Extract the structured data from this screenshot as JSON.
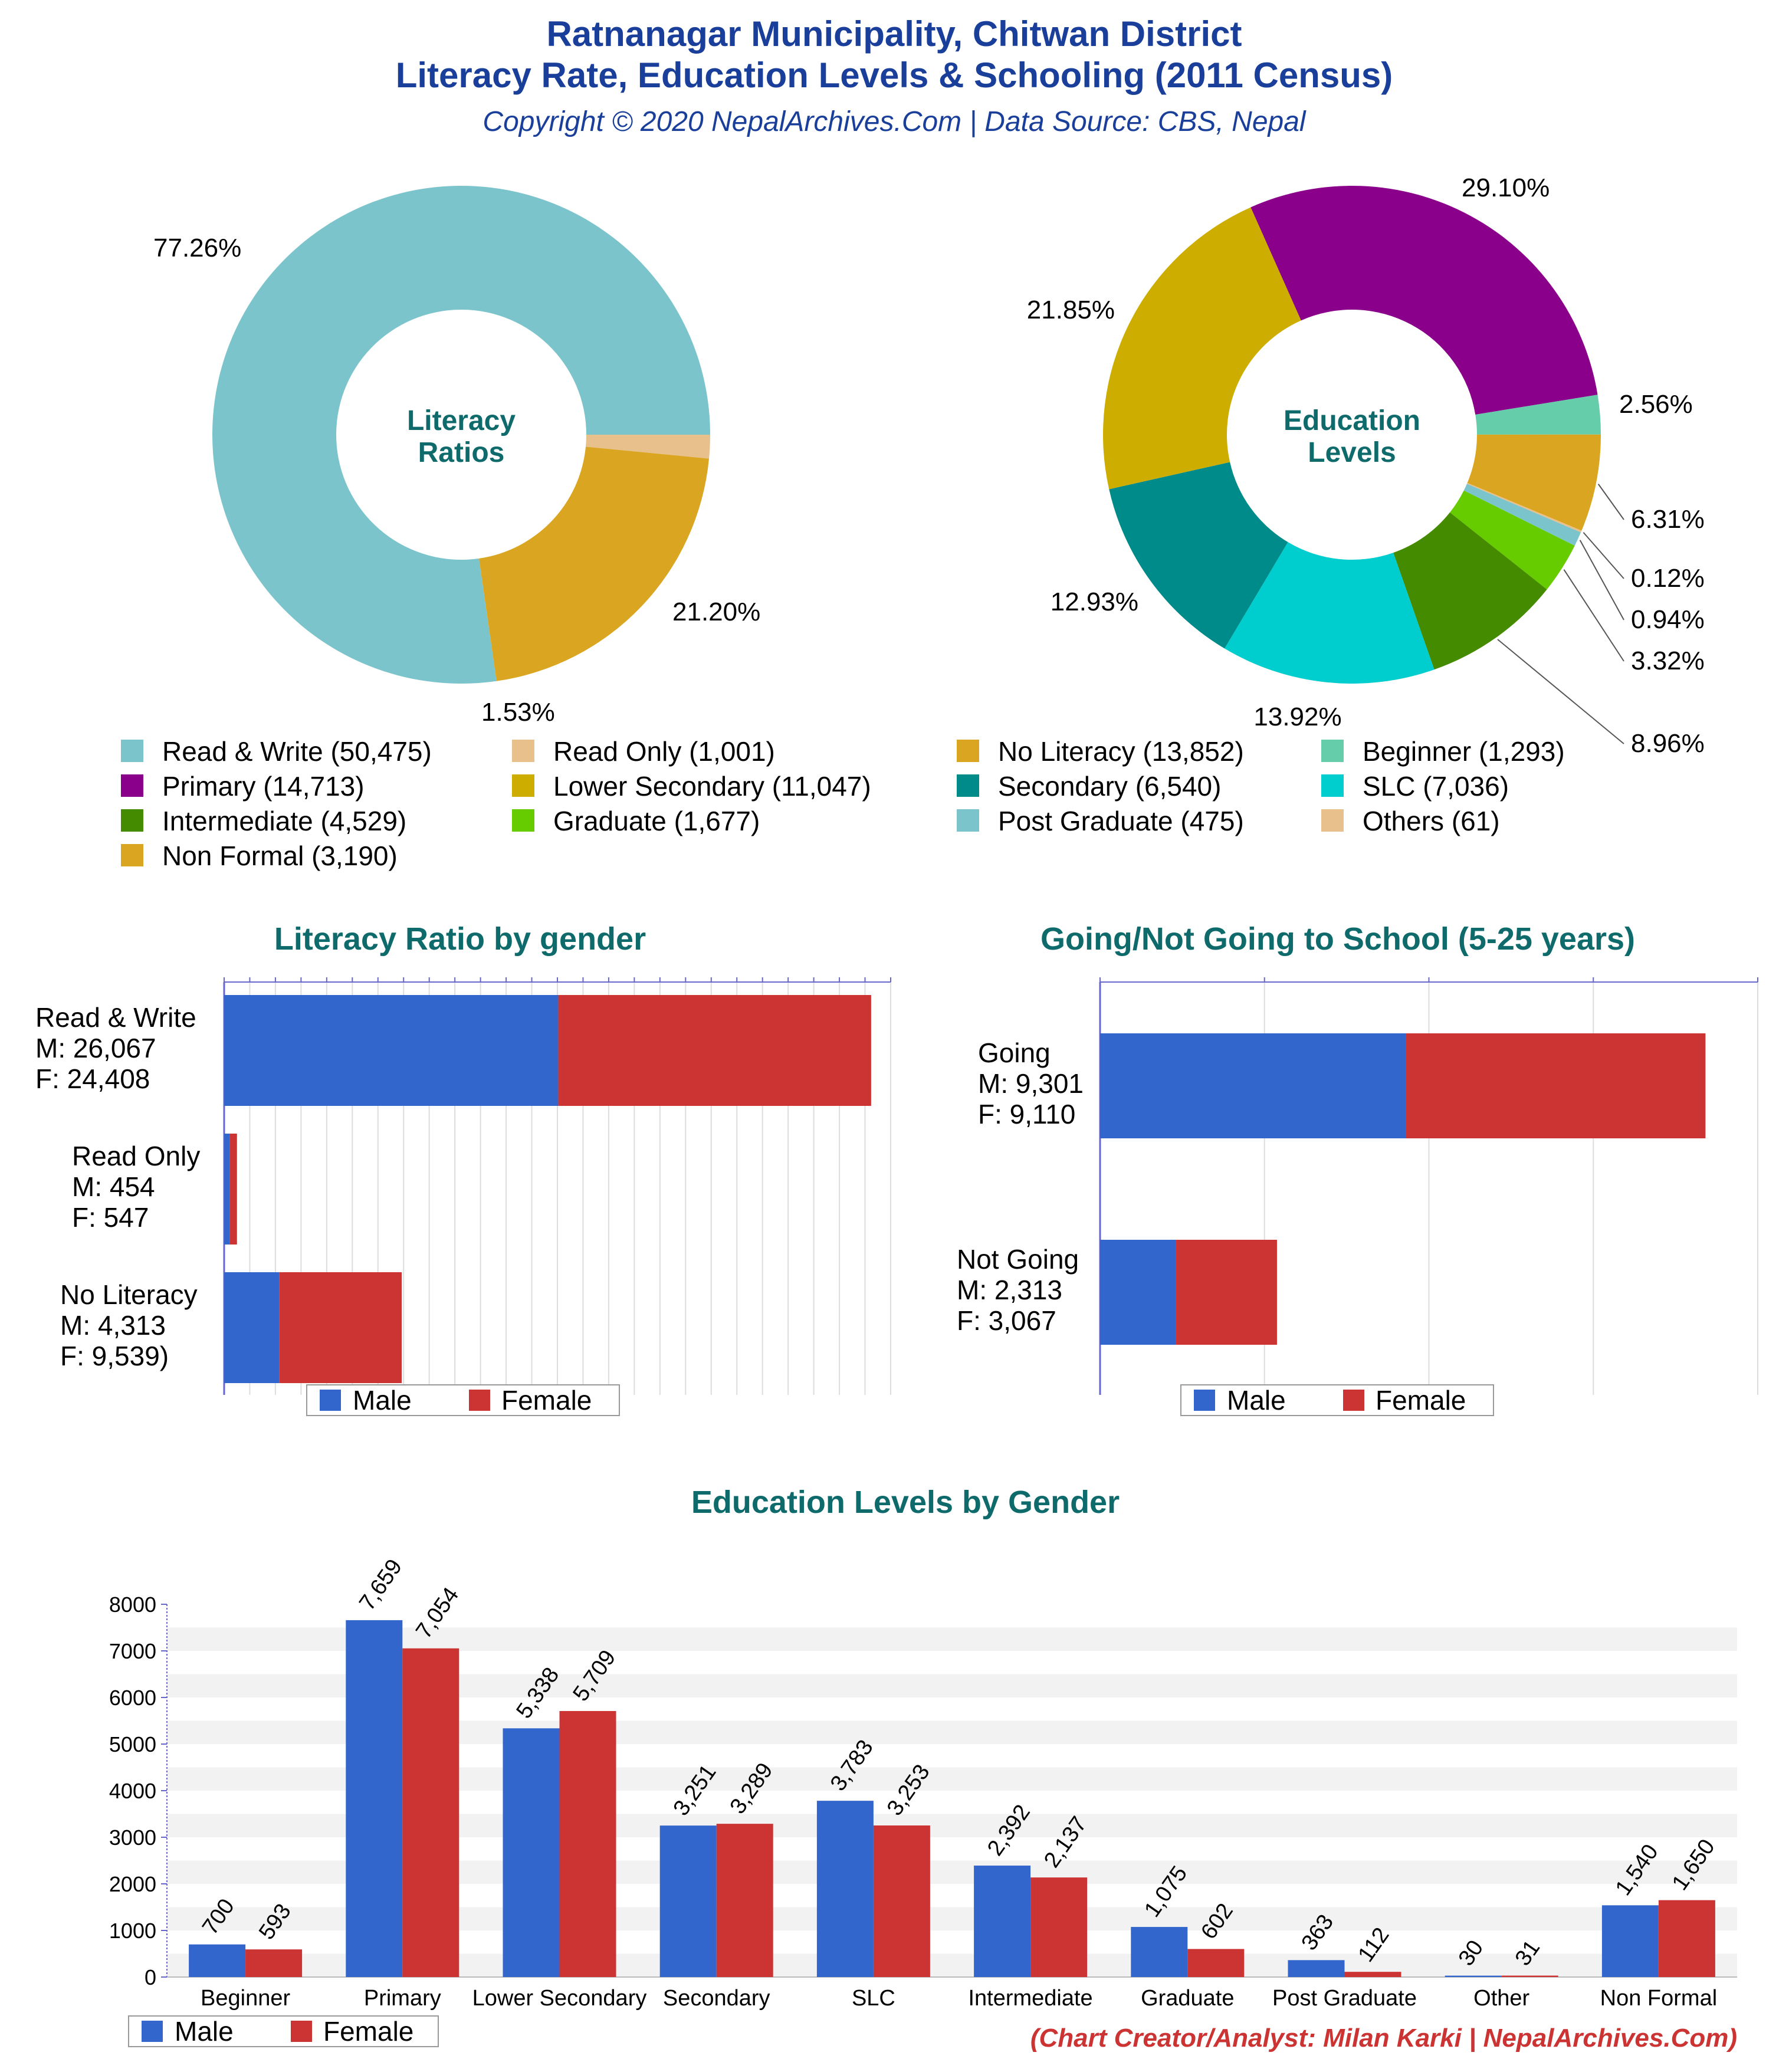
{
  "header": {
    "title_line1": "Ratnanagar Municipality, Chitwan District",
    "title_line2": "Literacy Rate, Education Levels & Schooling (2011 Census)",
    "subtitle": "Copyright © 2020 NepalArchives.Com | Data Source: CBS, Nepal"
  },
  "footer": {
    "credit": "(Chart Creator/Analyst: Milan Karki | NepalArchives.Com)"
  },
  "colors": {
    "title": "#1a3f9a",
    "section_title": "#0f6b6b",
    "credit": "#cc3333",
    "male": "#3366cc",
    "female": "#cc3333"
  },
  "chart_data": [
    {
      "id": "literacy_ratios",
      "type": "pie",
      "center_label": [
        "Literacy",
        "Ratios"
      ],
      "slices": [
        {
          "label": "Read & Write",
          "value": 50475,
          "percent_label": "77.26%",
          "color": "#7cc4cc"
        },
        {
          "label": "Read Only",
          "value": 1001,
          "percent_label": "1.53%",
          "color": "#e8c08c"
        },
        {
          "label": "No Literacy",
          "value": 13852,
          "percent_label": "21.20%",
          "color": "#daa520"
        }
      ]
    },
    {
      "id": "education_levels",
      "type": "pie",
      "center_label": [
        "Education",
        "Levels"
      ],
      "slices": [
        {
          "label": "Primary",
          "value": 14713,
          "percent_label": "29.10%",
          "color": "#8b008b"
        },
        {
          "label": "Beginner",
          "value": 1293,
          "percent_label": "2.56%",
          "color": "#66cdaa"
        },
        {
          "label": "Non Formal",
          "value": 3190,
          "percent_label": "6.31%",
          "color": "#daa520"
        },
        {
          "label": "Others",
          "value": 61,
          "percent_label": "0.12%",
          "color": "#e8c08c"
        },
        {
          "label": "Post Graduate",
          "value": 475,
          "percent_label": "0.94%",
          "color": "#7cc4cc"
        },
        {
          "label": "Graduate",
          "value": 1677,
          "percent_label": "3.32%",
          "color": "#66cc00"
        },
        {
          "label": "Intermediate",
          "value": 4529,
          "percent_label": "8.96%",
          "color": "#458b00"
        },
        {
          "label": "SLC",
          "value": 7036,
          "percent_label": "13.92%",
          "color": "#00cdcd"
        },
        {
          "label": "Secondary",
          "value": 6540,
          "percent_label": "12.93%",
          "color": "#008b8b"
        },
        {
          "label": "Lower Secondary",
          "value": 11047,
          "percent_label": "21.85%",
          "color": "#cdad00"
        }
      ]
    },
    {
      "id": "legend",
      "type": "legend",
      "rows": [
        [
          {
            "text": "Read & Write (50,475)",
            "color": "#7cc4cc"
          },
          {
            "text": "Read Only (1,001)",
            "color": "#e8c08c"
          },
          {
            "text": "No Literacy (13,852)",
            "color": "#daa520"
          },
          {
            "text": "Beginner (1,293)",
            "color": "#66cdaa"
          }
        ],
        [
          {
            "text": "Primary (14,713)",
            "color": "#8b008b"
          },
          {
            "text": "Lower Secondary (11,047)",
            "color": "#cdad00"
          },
          {
            "text": "Secondary (6,540)",
            "color": "#008b8b"
          },
          {
            "text": "SLC (7,036)",
            "color": "#00cdcd"
          }
        ],
        [
          {
            "text": "Intermediate (4,529)",
            "color": "#458b00"
          },
          {
            "text": "Graduate (1,677)",
            "color": "#66cc00"
          },
          {
            "text": "Post Graduate (475)",
            "color": "#7cc4cc"
          },
          {
            "text": "Others (61)",
            "color": "#e8c08c"
          }
        ],
        [
          {
            "text": "Non Formal (3,190)",
            "color": "#daa520"
          }
        ]
      ]
    },
    {
      "id": "literacy_by_gender",
      "type": "bar",
      "title": "Literacy Ratio by gender",
      "orientation": "horizontal",
      "stacked": true,
      "categories": [
        {
          "lines": [
            "Read & Write",
            "M: 26,067",
            "F: 24,408"
          ],
          "male": 26067,
          "female": 24408
        },
        {
          "lines": [
            "Read Only",
            "M: 454",
            "F: 547"
          ],
          "male": 454,
          "female": 547
        },
        {
          "lines": [
            "No Literacy",
            "M: 4,313",
            "F: 9,539)"
          ],
          "male": 4313,
          "female": 9539
        }
      ],
      "xlim": [
        0,
        52000
      ],
      "legend": [
        "Male",
        "Female"
      ]
    },
    {
      "id": "schooling",
      "type": "bar",
      "title": "Going/Not Going to School (5-25 years)",
      "orientation": "horizontal",
      "stacked": true,
      "categories": [
        {
          "lines": [
            "Going",
            "M: 9,301",
            "F: 9,110"
          ],
          "male": 9301,
          "female": 9110
        },
        {
          "lines": [
            "Not Going",
            "M: 2,313",
            "F: 3,067"
          ],
          "male": 2313,
          "female": 3067
        }
      ],
      "xlim": [
        0,
        20000
      ],
      "legend": [
        "Male",
        "Female"
      ]
    },
    {
      "id": "education_by_gender",
      "type": "bar",
      "title": "Education Levels by Gender",
      "categories": [
        "Beginner",
        "Primary",
        "Lower Secondary",
        "Secondary",
        "SLC",
        "Intermediate",
        "Graduate",
        "Post Graduate",
        "Other",
        "Non Formal"
      ],
      "series": [
        {
          "name": "Male",
          "values": [
            700,
            7659,
            5338,
            3251,
            3783,
            2392,
            1075,
            363,
            30,
            1540
          ],
          "labels": [
            "700",
            "7,659",
            "5,338",
            "3,251",
            "3,783",
            "2,392",
            "1,075",
            "363",
            "30",
            "1,540"
          ]
        },
        {
          "name": "Female",
          "values": [
            593,
            7054,
            5709,
            3289,
            3253,
            2137,
            602,
            112,
            31,
            1650
          ],
          "labels": [
            "593",
            "7,054",
            "5,709",
            "3,289",
            "3,253",
            "2,137",
            "602",
            "112",
            "31",
            "1,650"
          ]
        }
      ],
      "ylim": [
        0,
        8000
      ],
      "yticks": [
        "0",
        "1000",
        "2000",
        "3000",
        "4000",
        "5000",
        "6000",
        "7000",
        "8000"
      ],
      "legend": [
        "Male",
        "Female"
      ]
    }
  ]
}
